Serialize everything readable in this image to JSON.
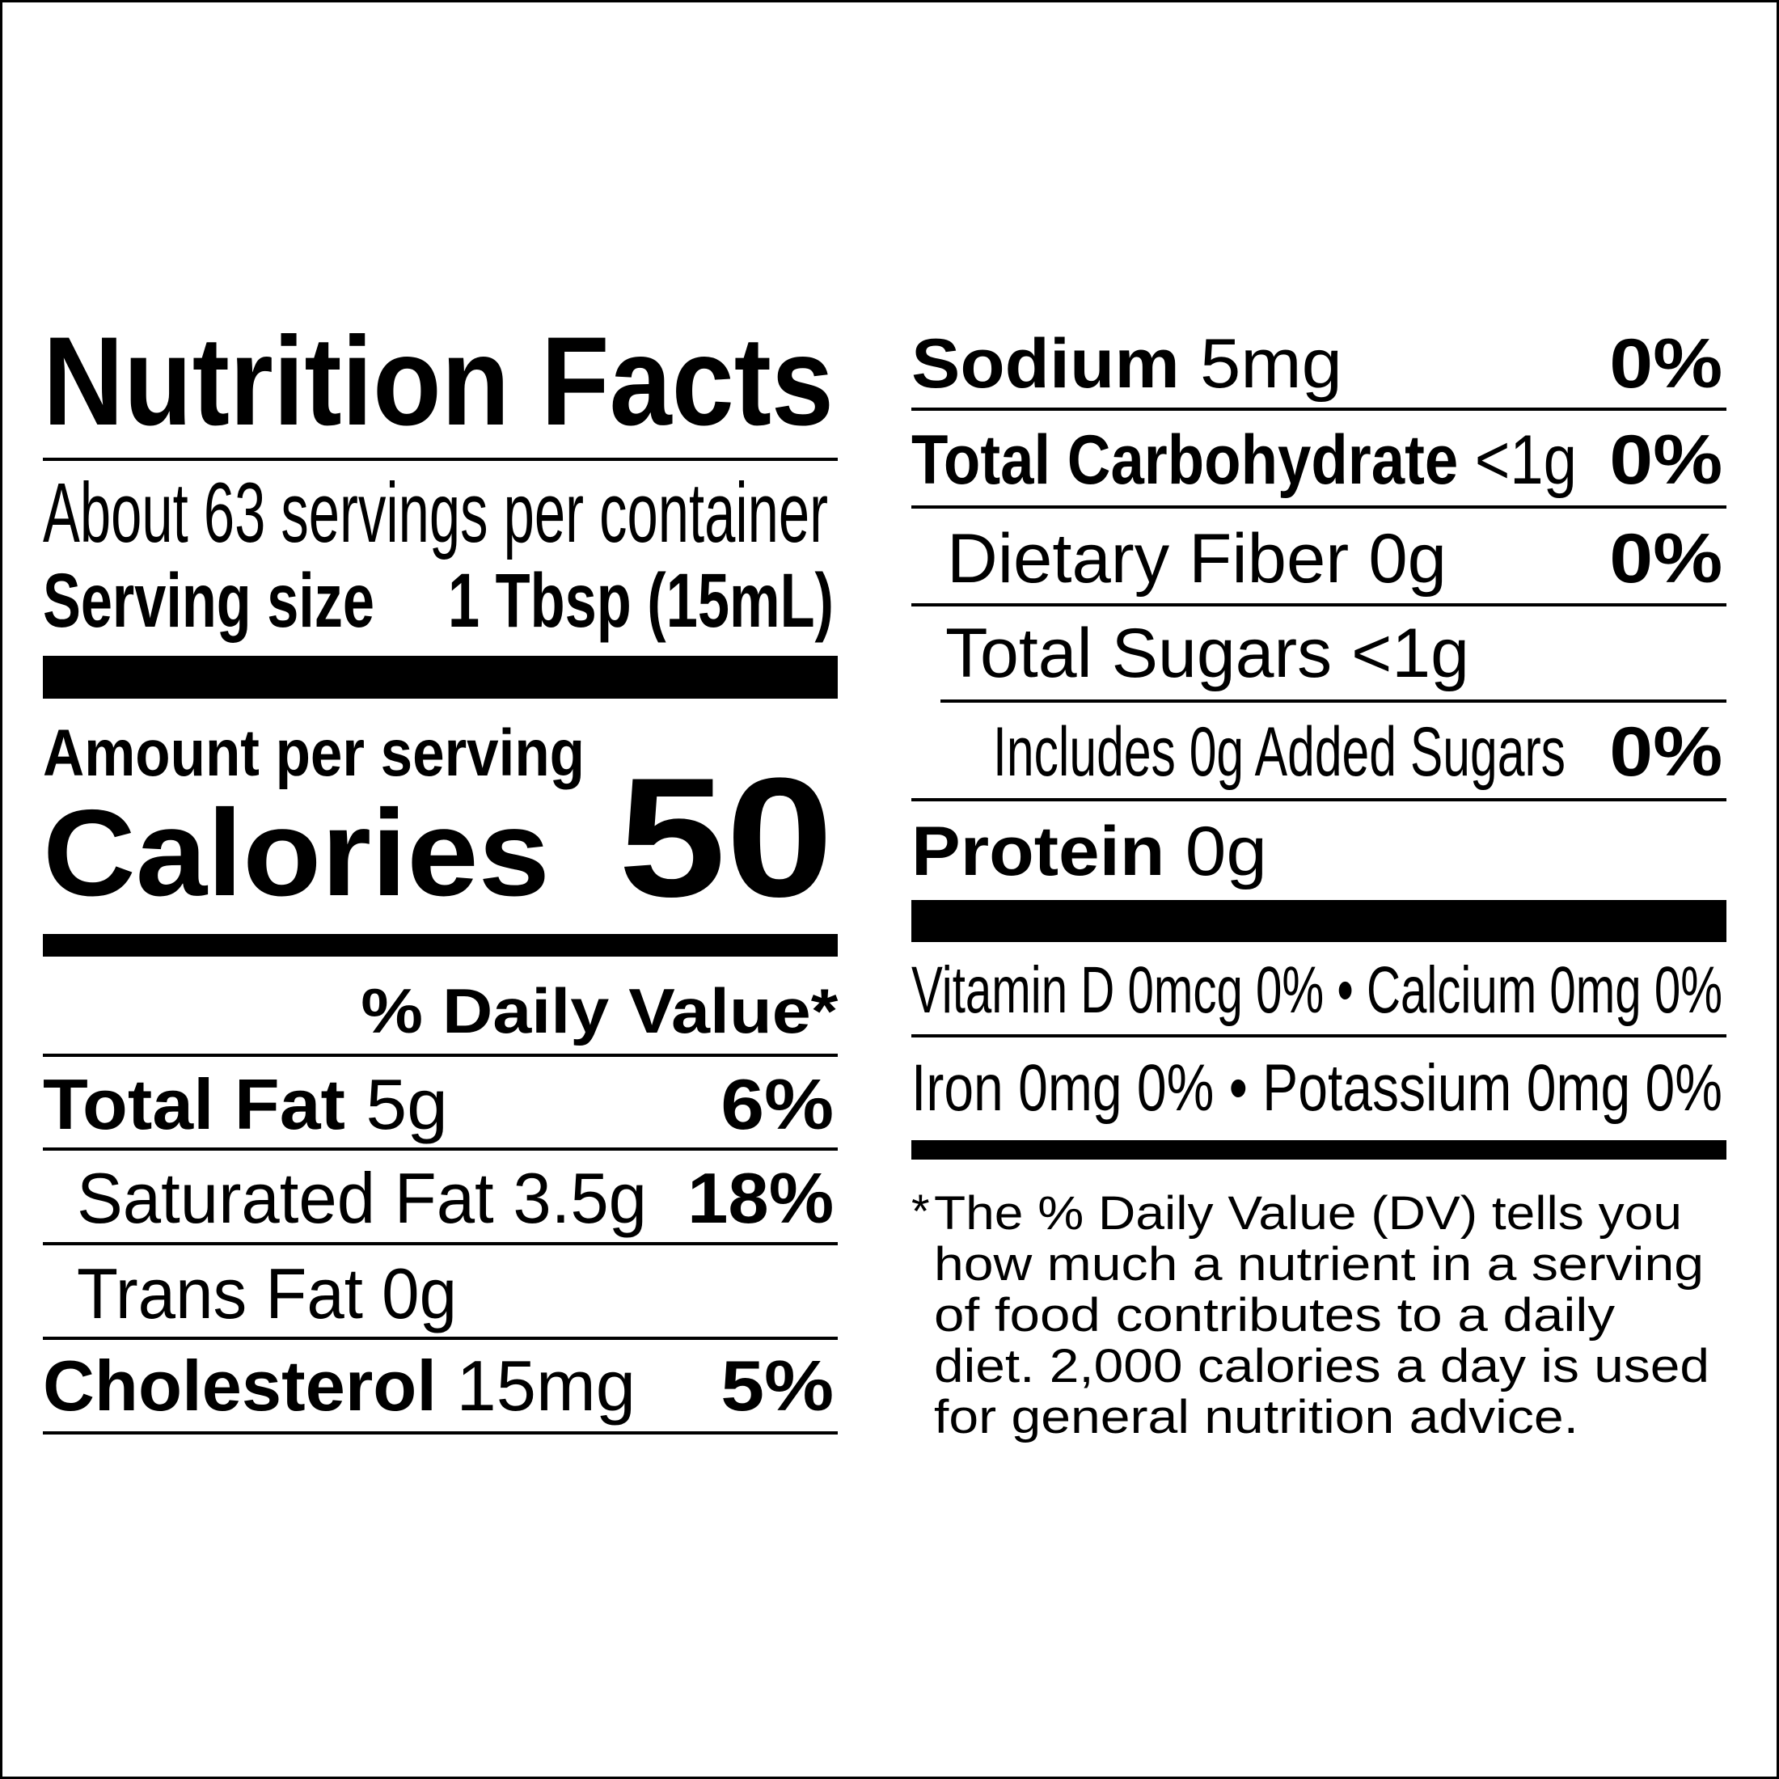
{
  "label": {
    "title": "Nutrition Facts",
    "servings_per_container": "About 63 servings per container",
    "serving_size_label": "Serving size",
    "serving_size_value": "1 Tbsp (15mL)",
    "amount_per_serving": "Amount per serving",
    "calories_label": "Calories",
    "calories_value": "50",
    "daily_value_header": "% Daily Value*"
  },
  "nutrients": {
    "total_fat": {
      "name": "Total Fat",
      "amount": "5g",
      "dv": "6%"
    },
    "saturated_fat": {
      "name": "Saturated Fat",
      "amount": "3.5g",
      "dv": "18%"
    },
    "trans_fat": {
      "name": "Trans Fat",
      "amount": "0g"
    },
    "cholesterol": {
      "name": "Cholesterol",
      "amount": "15mg",
      "dv": "5%"
    },
    "sodium": {
      "name": "Sodium",
      "amount": "5mg",
      "dv": "0%"
    },
    "total_carbohydrate": {
      "name": "Total Carbohydrate",
      "amount": "<1g",
      "dv": "0%"
    },
    "dietary_fiber": {
      "name": "Dietary Fiber",
      "amount": "0g",
      "dv": "0%"
    },
    "total_sugars": {
      "name": "Total Sugars",
      "amount": "<1g"
    },
    "added_sugars": {
      "name": "Includes 0g Added Sugars",
      "dv": "0%"
    },
    "protein": {
      "name": "Protein",
      "amount": "0g"
    }
  },
  "micronutrients": {
    "vitamin_d": "Vitamin D 0mcg 0%",
    "calcium": "Calcium 0mg 0%",
    "iron": "Iron 0mg 0%",
    "potassium": "Potassium 0mg 0%",
    "separator": "•"
  },
  "footnote": {
    "asterisk": "*",
    "lines": [
      "The % Daily Value (DV) tells you",
      "how much a nutrient in a serving",
      "of food contributes to a daily",
      "diet. 2,000 calories a day is used",
      "for general nutrition advice."
    ]
  }
}
